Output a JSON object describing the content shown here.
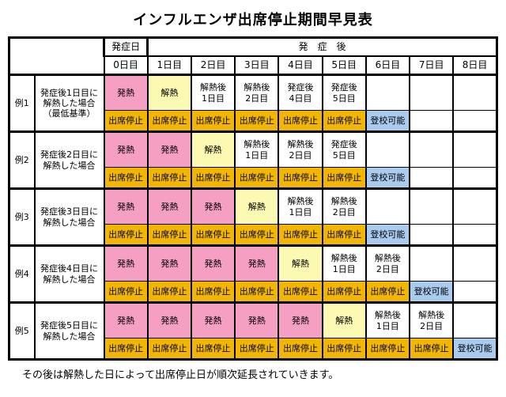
{
  "title": "インフルエンザ出席停止期間早見表",
  "footer": "その後は解熱した日によって出席停止日が順次延長されていきます。",
  "colors": {
    "fever": "#f5a0c3",
    "cooled": "#fbf9b2",
    "suspended": "#f2b600",
    "allowed": "#a9cbee"
  },
  "header": {
    "onset_day": "発症日",
    "after_onset": "発　症　後",
    "days": [
      "0日目",
      "1日目",
      "2日目",
      "3日目",
      "4日目",
      "5日目",
      "6日目",
      "7日目",
      "8日目"
    ]
  },
  "rows": [
    {
      "example": "例1",
      "case": "発症後1日目に\n解熱した場合\n（最低基準）",
      "status": [
        {
          "label": "発熱",
          "type": "fever"
        },
        {
          "label": "解熱",
          "type": "cooled"
        },
        {
          "label": "解熱後\n1日目",
          "type": "plain"
        },
        {
          "label": "解熱後\n2日目",
          "type": "plain"
        },
        {
          "label": "発症後\n4日目",
          "type": "plain"
        },
        {
          "label": "発症後\n5日目",
          "type": "plain"
        },
        {
          "label": "",
          "type": "empty"
        },
        {
          "label": "",
          "type": "empty"
        },
        {
          "label": "",
          "type": "empty"
        }
      ],
      "attendance": [
        {
          "label": "出席停止",
          "type": "suspended"
        },
        {
          "label": "出席停止",
          "type": "suspended"
        },
        {
          "label": "出席停止",
          "type": "suspended"
        },
        {
          "label": "出席停止",
          "type": "suspended"
        },
        {
          "label": "出席停止",
          "type": "suspended"
        },
        {
          "label": "出席停止",
          "type": "suspended"
        },
        {
          "label": "登校可能",
          "type": "allowed"
        },
        {
          "label": "",
          "type": "empty"
        },
        {
          "label": "",
          "type": "empty"
        }
      ]
    },
    {
      "example": "例2",
      "case": "発症後2日目に\n解熱した場合",
      "status": [
        {
          "label": "発熱",
          "type": "fever"
        },
        {
          "label": "発熱",
          "type": "fever"
        },
        {
          "label": "解熱",
          "type": "cooled"
        },
        {
          "label": "解熱後\n1日目",
          "type": "plain"
        },
        {
          "label": "解熱後\n2日目",
          "type": "plain"
        },
        {
          "label": "発症後\n5日目",
          "type": "plain"
        },
        {
          "label": "",
          "type": "empty"
        },
        {
          "label": "",
          "type": "empty"
        },
        {
          "label": "",
          "type": "empty"
        }
      ],
      "attendance": [
        {
          "label": "出席停止",
          "type": "suspended"
        },
        {
          "label": "出席停止",
          "type": "suspended"
        },
        {
          "label": "出席停止",
          "type": "suspended"
        },
        {
          "label": "出席停止",
          "type": "suspended"
        },
        {
          "label": "出席停止",
          "type": "suspended"
        },
        {
          "label": "出席停止",
          "type": "suspended"
        },
        {
          "label": "登校可能",
          "type": "allowed"
        },
        {
          "label": "",
          "type": "empty"
        },
        {
          "label": "",
          "type": "empty"
        }
      ]
    },
    {
      "example": "例3",
      "case": "発症後3日目に\n解熱した場合",
      "status": [
        {
          "label": "発熱",
          "type": "fever"
        },
        {
          "label": "発熱",
          "type": "fever"
        },
        {
          "label": "発熱",
          "type": "fever"
        },
        {
          "label": "解熱",
          "type": "cooled"
        },
        {
          "label": "解熱後\n1日目",
          "type": "plain"
        },
        {
          "label": "解熱後\n2日目",
          "type": "plain"
        },
        {
          "label": "",
          "type": "empty"
        },
        {
          "label": "",
          "type": "empty"
        },
        {
          "label": "",
          "type": "empty"
        }
      ],
      "attendance": [
        {
          "label": "出席停止",
          "type": "suspended"
        },
        {
          "label": "出席停止",
          "type": "suspended"
        },
        {
          "label": "出席停止",
          "type": "suspended"
        },
        {
          "label": "出席停止",
          "type": "suspended"
        },
        {
          "label": "出席停止",
          "type": "suspended"
        },
        {
          "label": "出席停止",
          "type": "suspended"
        },
        {
          "label": "登校可能",
          "type": "allowed"
        },
        {
          "label": "",
          "type": "empty"
        },
        {
          "label": "",
          "type": "empty"
        }
      ]
    },
    {
      "example": "例4",
      "case": "発症後4日目に\n解熱した場合",
      "status": [
        {
          "label": "発熱",
          "type": "fever"
        },
        {
          "label": "発熱",
          "type": "fever"
        },
        {
          "label": "発熱",
          "type": "fever"
        },
        {
          "label": "発熱",
          "type": "fever"
        },
        {
          "label": "解熱",
          "type": "cooled"
        },
        {
          "label": "解熱後\n1日目",
          "type": "plain"
        },
        {
          "label": "解熱後\n2日目",
          "type": "plain"
        },
        {
          "label": "",
          "type": "empty"
        },
        {
          "label": "",
          "type": "empty"
        }
      ],
      "attendance": [
        {
          "label": "出席停止",
          "type": "suspended"
        },
        {
          "label": "出席停止",
          "type": "suspended"
        },
        {
          "label": "出席停止",
          "type": "suspended"
        },
        {
          "label": "出席停止",
          "type": "suspended"
        },
        {
          "label": "出席停止",
          "type": "suspended"
        },
        {
          "label": "出席停止",
          "type": "suspended"
        },
        {
          "label": "出席停止",
          "type": "suspended"
        },
        {
          "label": "登校可能",
          "type": "allowed"
        },
        {
          "label": "",
          "type": "empty"
        }
      ]
    },
    {
      "example": "例5",
      "case": "発症後5日目に\n解熱した場合",
      "status": [
        {
          "label": "発熱",
          "type": "fever"
        },
        {
          "label": "発熱",
          "type": "fever"
        },
        {
          "label": "発熱",
          "type": "fever"
        },
        {
          "label": "発熱",
          "type": "fever"
        },
        {
          "label": "発熱",
          "type": "fever"
        },
        {
          "label": "解熱",
          "type": "cooled"
        },
        {
          "label": "解熱後\n1日目",
          "type": "plain"
        },
        {
          "label": "解熱後\n2日目",
          "type": "plain"
        },
        {
          "label": "",
          "type": "empty"
        }
      ],
      "attendance": [
        {
          "label": "出席停止",
          "type": "suspended"
        },
        {
          "label": "出席停止",
          "type": "suspended"
        },
        {
          "label": "出席停止",
          "type": "suspended"
        },
        {
          "label": "出席停止",
          "type": "suspended"
        },
        {
          "label": "出席停止",
          "type": "suspended"
        },
        {
          "label": "出席停止",
          "type": "suspended"
        },
        {
          "label": "出席停止",
          "type": "suspended"
        },
        {
          "label": "出席停止",
          "type": "suspended"
        },
        {
          "label": "登校可能",
          "type": "allowed"
        }
      ]
    }
  ]
}
